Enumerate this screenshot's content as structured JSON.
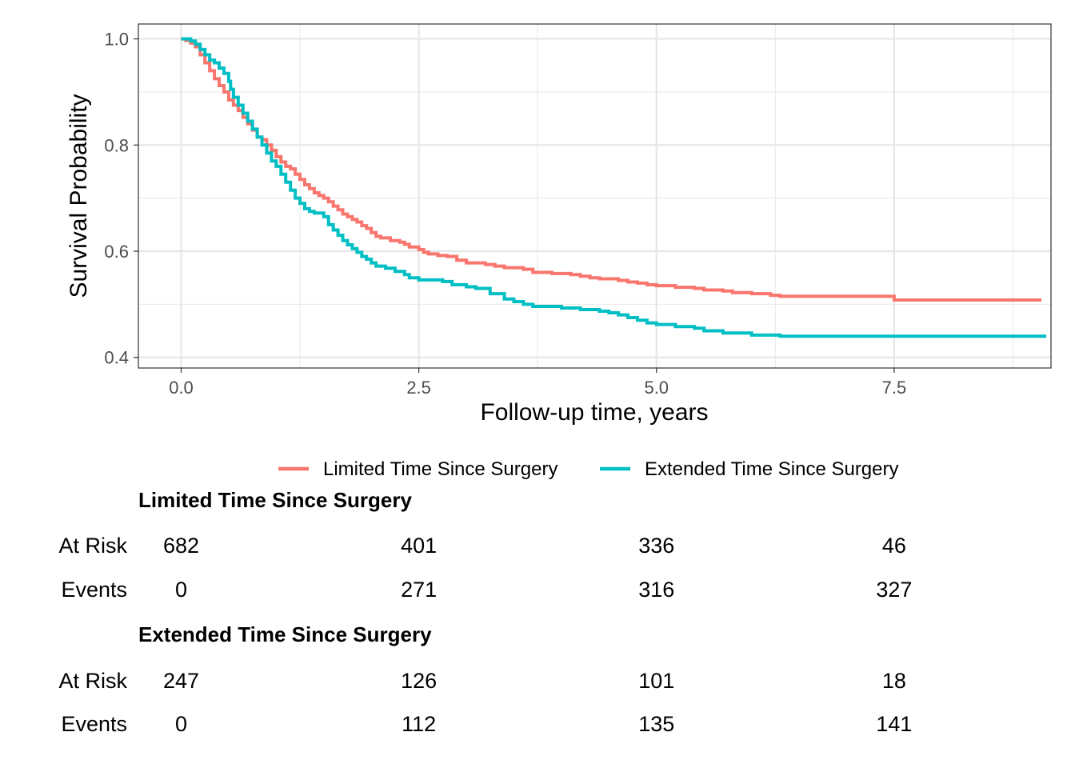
{
  "chart_data": {
    "type": "line",
    "step": true,
    "xlabel": "Follow-up time, years",
    "ylabel": "Survival Probability",
    "xlim": [
      -0.45,
      9.15
    ],
    "ylim": [
      0.38,
      1.028
    ],
    "xticks": [
      0,
      2.5,
      5,
      7.5
    ],
    "xtick_labels": [
      "0.0",
      "2.5",
      "5.0",
      "7.5"
    ],
    "yticks": [
      0.4,
      0.6,
      0.8,
      1.0
    ],
    "ytick_labels": [
      "0.4",
      "0.6",
      "0.8",
      "1.0"
    ],
    "grid": true,
    "legend_position": "bottom",
    "series": [
      {
        "name": "Limited Time Since Surgery",
        "color": "#F8766D",
        "points": [
          [
            0,
            1.0
          ],
          [
            0.05,
            0.997
          ],
          [
            0.1,
            0.992
          ],
          [
            0.15,
            0.985
          ],
          [
            0.2,
            0.97
          ],
          [
            0.25,
            0.955
          ],
          [
            0.3,
            0.94
          ],
          [
            0.35,
            0.925
          ],
          [
            0.4,
            0.912
          ],
          [
            0.45,
            0.9
          ],
          [
            0.5,
            0.885
          ],
          [
            0.55,
            0.875
          ],
          [
            0.6,
            0.865
          ],
          [
            0.65,
            0.852
          ],
          [
            0.7,
            0.84
          ],
          [
            0.75,
            0.828
          ],
          [
            0.8,
            0.815
          ],
          [
            0.85,
            0.81
          ],
          [
            0.9,
            0.8
          ],
          [
            0.95,
            0.79
          ],
          [
            1.0,
            0.778
          ],
          [
            1.05,
            0.768
          ],
          [
            1.1,
            0.76
          ],
          [
            1.15,
            0.755
          ],
          [
            1.2,
            0.745
          ],
          [
            1.25,
            0.735
          ],
          [
            1.3,
            0.725
          ],
          [
            1.35,
            0.718
          ],
          [
            1.4,
            0.71
          ],
          [
            1.45,
            0.705
          ],
          [
            1.5,
            0.7
          ],
          [
            1.55,
            0.693
          ],
          [
            1.6,
            0.685
          ],
          [
            1.65,
            0.678
          ],
          [
            1.7,
            0.67
          ],
          [
            1.75,
            0.665
          ],
          [
            1.8,
            0.66
          ],
          [
            1.85,
            0.655
          ],
          [
            1.9,
            0.648
          ],
          [
            1.95,
            0.643
          ],
          [
            2.0,
            0.635
          ],
          [
            2.05,
            0.628
          ],
          [
            2.1,
            0.625
          ],
          [
            2.2,
            0.62
          ],
          [
            2.3,
            0.617
          ],
          [
            2.35,
            0.613
          ],
          [
            2.4,
            0.608
          ],
          [
            2.5,
            0.603
          ],
          [
            2.55,
            0.598
          ],
          [
            2.6,
            0.595
          ],
          [
            2.7,
            0.592
          ],
          [
            2.8,
            0.59
          ],
          [
            2.9,
            0.583
          ],
          [
            3.0,
            0.578
          ],
          [
            3.2,
            0.575
          ],
          [
            3.3,
            0.572
          ],
          [
            3.4,
            0.569
          ],
          [
            3.6,
            0.566
          ],
          [
            3.7,
            0.56
          ],
          [
            3.9,
            0.558
          ],
          [
            4.1,
            0.556
          ],
          [
            4.2,
            0.553
          ],
          [
            4.3,
            0.55
          ],
          [
            4.4,
            0.548
          ],
          [
            4.6,
            0.545
          ],
          [
            4.7,
            0.542
          ],
          [
            4.8,
            0.54
          ],
          [
            4.9,
            0.537
          ],
          [
            5.0,
            0.535
          ],
          [
            5.2,
            0.532
          ],
          [
            5.4,
            0.53
          ],
          [
            5.5,
            0.527
          ],
          [
            5.7,
            0.525
          ],
          [
            5.8,
            0.522
          ],
          [
            6.0,
            0.52
          ],
          [
            6.2,
            0.517
          ],
          [
            6.3,
            0.515
          ],
          [
            6.5,
            0.515
          ],
          [
            7.0,
            0.515
          ],
          [
            7.49,
            0.515
          ],
          [
            7.5,
            0.508
          ],
          [
            8.0,
            0.508
          ],
          [
            8.5,
            0.508
          ],
          [
            9.05,
            0.508
          ]
        ]
      },
      {
        "name": "Extended Time Since Surgery",
        "color": "#00BFC4",
        "points": [
          [
            0,
            1.0
          ],
          [
            0.1,
            0.996
          ],
          [
            0.15,
            0.99
          ],
          [
            0.2,
            0.98
          ],
          [
            0.25,
            0.97
          ],
          [
            0.3,
            0.96
          ],
          [
            0.35,
            0.955
          ],
          [
            0.4,
            0.945
          ],
          [
            0.45,
            0.935
          ],
          [
            0.5,
            0.92
          ],
          [
            0.52,
            0.905
          ],
          [
            0.55,
            0.89
          ],
          [
            0.6,
            0.875
          ],
          [
            0.65,
            0.86
          ],
          [
            0.7,
            0.845
          ],
          [
            0.75,
            0.83
          ],
          [
            0.8,
            0.815
          ],
          [
            0.85,
            0.8
          ],
          [
            0.9,
            0.785
          ],
          [
            0.95,
            0.77
          ],
          [
            1.0,
            0.76
          ],
          [
            1.05,
            0.745
          ],
          [
            1.1,
            0.73
          ],
          [
            1.15,
            0.715
          ],
          [
            1.2,
            0.7
          ],
          [
            1.25,
            0.69
          ],
          [
            1.3,
            0.68
          ],
          [
            1.35,
            0.675
          ],
          [
            1.4,
            0.672
          ],
          [
            1.5,
            0.665
          ],
          [
            1.55,
            0.65
          ],
          [
            1.6,
            0.64
          ],
          [
            1.65,
            0.63
          ],
          [
            1.7,
            0.62
          ],
          [
            1.75,
            0.612
          ],
          [
            1.8,
            0.605
          ],
          [
            1.85,
            0.598
          ],
          [
            1.9,
            0.59
          ],
          [
            1.95,
            0.585
          ],
          [
            2.0,
            0.578
          ],
          [
            2.05,
            0.572
          ],
          [
            2.15,
            0.568
          ],
          [
            2.25,
            0.562
          ],
          [
            2.35,
            0.556
          ],
          [
            2.4,
            0.55
          ],
          [
            2.5,
            0.546
          ],
          [
            2.6,
            0.546
          ],
          [
            2.75,
            0.543
          ],
          [
            2.85,
            0.537
          ],
          [
            3.0,
            0.533
          ],
          [
            3.1,
            0.53
          ],
          [
            3.2,
            0.53
          ],
          [
            3.25,
            0.52
          ],
          [
            3.4,
            0.51
          ],
          [
            3.5,
            0.505
          ],
          [
            3.6,
            0.5
          ],
          [
            3.7,
            0.496
          ],
          [
            4.0,
            0.493
          ],
          [
            4.2,
            0.49
          ],
          [
            4.4,
            0.487
          ],
          [
            4.5,
            0.484
          ],
          [
            4.6,
            0.48
          ],
          [
            4.7,
            0.475
          ],
          [
            4.8,
            0.47
          ],
          [
            4.9,
            0.465
          ],
          [
            5.0,
            0.462
          ],
          [
            5.2,
            0.458
          ],
          [
            5.4,
            0.455
          ],
          [
            5.5,
            0.45
          ],
          [
            5.7,
            0.446
          ],
          [
            6.0,
            0.442
          ],
          [
            6.3,
            0.44
          ],
          [
            7.0,
            0.44
          ],
          [
            8.0,
            0.44
          ],
          [
            9.1,
            0.44
          ]
        ]
      }
    ]
  },
  "risk_table": {
    "times": [
      0,
      2.5,
      5,
      7.5
    ],
    "groups": [
      {
        "title": "Limited Time Since Surgery",
        "rows": [
          {
            "label": "At Risk",
            "values": [
              "682",
              "401",
              "336",
              "46"
            ]
          },
          {
            "label": "Events",
            "values": [
              "0",
              "271",
              "316",
              "327"
            ]
          }
        ]
      },
      {
        "title": "Extended Time Since Surgery",
        "rows": [
          {
            "label": "At Risk",
            "values": [
              "247",
              "126",
              "101",
              "18"
            ]
          },
          {
            "label": "Events",
            "values": [
              "0",
              "112",
              "135",
              "141"
            ]
          }
        ]
      }
    ]
  }
}
